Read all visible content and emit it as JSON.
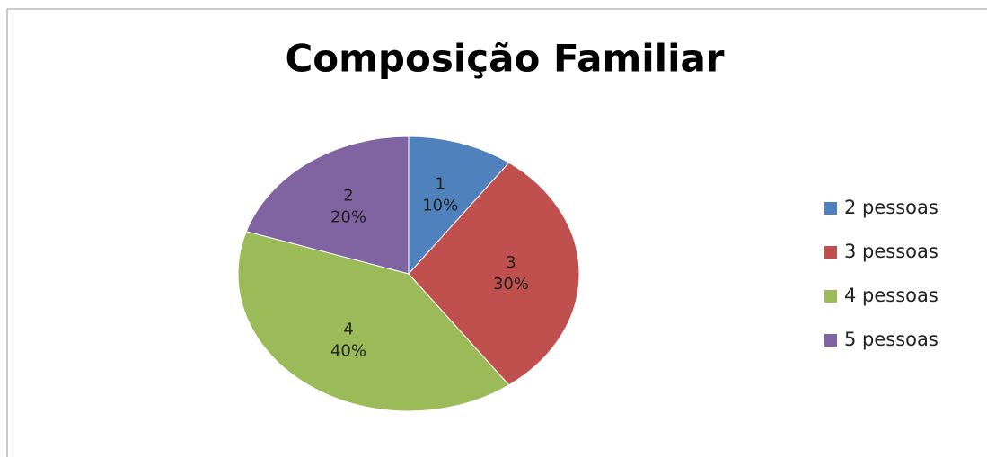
{
  "chart_data": {
    "type": "pie",
    "title": "Composição Familiar",
    "categories": [
      "2 pessoas",
      "3 pessoas",
      "4 pessoas",
      "5 pessoas"
    ],
    "values": [
      1,
      3,
      4,
      2
    ],
    "percents": [
      10,
      30,
      40,
      20
    ],
    "percent_labels": [
      "10%",
      "30%",
      "40%",
      "20%"
    ],
    "colors": [
      "#4f81bd",
      "#c0504d",
      "#9bbb59",
      "#8064a2"
    ],
    "legend": "right"
  }
}
